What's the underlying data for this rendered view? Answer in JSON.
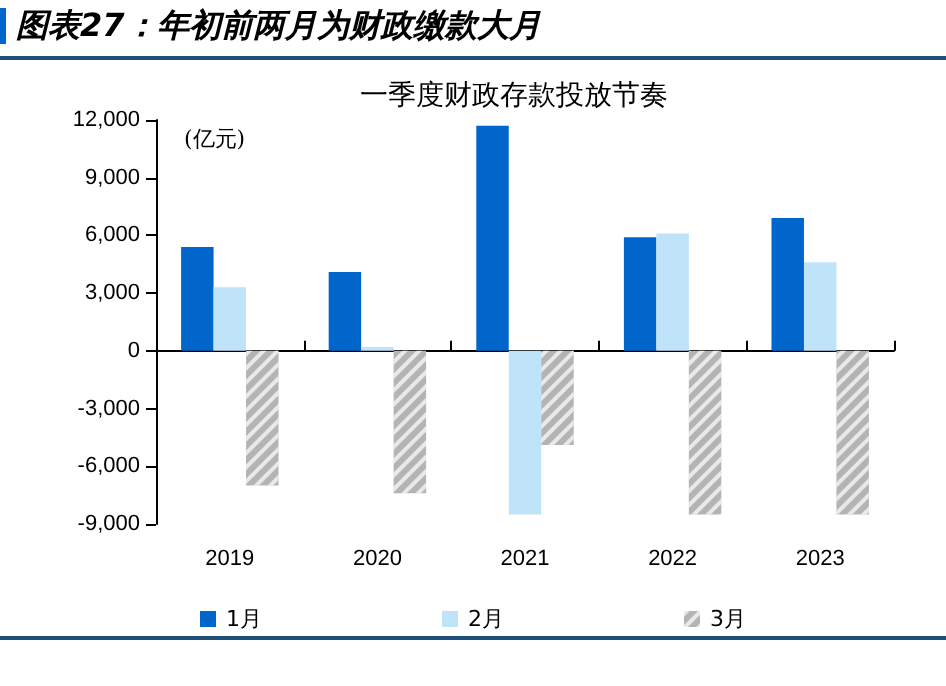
{
  "chart_data": {
    "type": "bar",
    "title": "图表27：年初前两月为财政缴款大月",
    "subtitle": "一季度财政存款投放节奏",
    "ylabel": "(亿元)",
    "categories": [
      "2019",
      "2020",
      "2021",
      "2022",
      "2023"
    ],
    "series": [
      {
        "name": "1月",
        "color": "#0066cc",
        "values": [
          5400,
          4100,
          11700,
          5900,
          6900
        ]
      },
      {
        "name": "2月",
        "color": "#bfe3f9",
        "values": [
          3300,
          200,
          -8500,
          6100,
          4600
        ]
      },
      {
        "name": "3月",
        "color": "#b4b4b4",
        "values": [
          -7000,
          -7400,
          -4900,
          -8500,
          -8500
        ]
      }
    ],
    "ylim": [
      -9000,
      12000
    ],
    "yticks": [
      {
        "value": -9000,
        "label": "-9,000"
      },
      {
        "value": -6000,
        "label": "-6,000"
      },
      {
        "value": -3000,
        "label": "-3,000"
      },
      0,
      {
        "value": 3000,
        "label": "3,000"
      },
      {
        "value": 6000,
        "label": "6,000"
      },
      {
        "value": 9000,
        "label": "9,000"
      },
      {
        "value": 12000,
        "label": "12,000"
      }
    ],
    "legend": "bottom"
  }
}
